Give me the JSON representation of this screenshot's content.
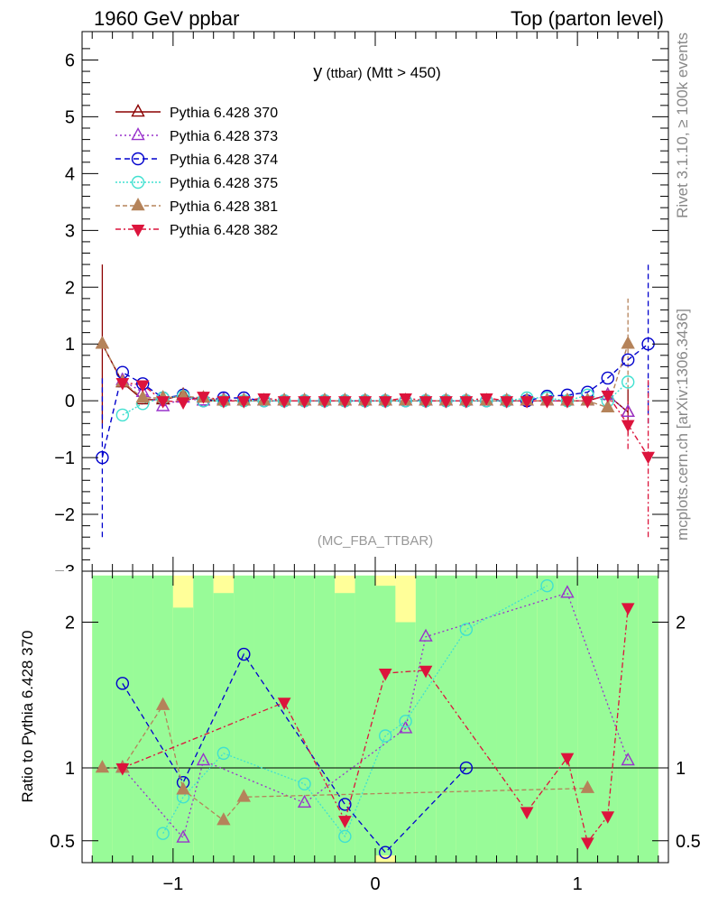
{
  "header": {
    "left": "1960 GeV ppbar",
    "right": "Top (parton level)"
  },
  "side_labels": {
    "rivet": "Rivet 3.1.10, ≥ 100k events",
    "mcplots": "mcplots.cern.ch [arXiv:1306.3436]"
  },
  "chart_data": [
    {
      "type": "line",
      "title": "y (ttbar) (Mtt > 450)",
      "title_main": "y",
      "title_small": "(ttbar)",
      "title_rest": "(Mtt > 450)",
      "analysis_tag": "(MC_FBA_TTBAR)",
      "xlabel": "",
      "ylabel": "",
      "xlim": [
        -1.45,
        1.45
      ],
      "ylim": [
        -3,
        6.5
      ],
      "yticks": [
        -2,
        -1,
        0,
        1,
        2,
        3,
        4,
        5,
        6
      ],
      "ytick_labels": [
        "−2",
        "−1",
        "0",
        "1",
        "2",
        "3",
        "4",
        "5",
        "6"
      ],
      "xticks": [
        -1,
        0,
        1
      ],
      "legend_position": "top-left",
      "x": [
        -1.35,
        -1.25,
        -1.15,
        -1.05,
        -0.95,
        -0.85,
        -0.75,
        -0.65,
        -0.55,
        -0.45,
        -0.35,
        -0.25,
        -0.15,
        -0.05,
        0.05,
        0.15,
        0.25,
        0.35,
        0.45,
        0.55,
        0.65,
        0.75,
        0.85,
        0.95,
        1.05,
        1.15,
        1.25,
        1.35
      ],
      "series": [
        {
          "name": "Pythia 6.428 370",
          "color": "#8b0000",
          "marker": "triangle-open",
          "dash": "",
          "values": [
            1.0,
            0.32,
            0.02,
            0.02,
            0.1,
            0.0,
            0.0,
            0.0,
            0.0,
            0.0,
            0.0,
            0.0,
            0.0,
            0.0,
            0.0,
            0.0,
            0.0,
            0.0,
            0.0,
            0.0,
            0.0,
            0.0,
            0.0,
            0.0,
            0.0,
            0.1,
            -0.2,
            null
          ]
        },
        {
          "name": "Pythia 6.428 373",
          "color": "#9932cc",
          "marker": "triangle-open",
          "dash": "2,3",
          "values": [
            null,
            0.36,
            0.15,
            -0.1,
            0.05,
            0.0,
            0.02,
            0.0,
            0.0,
            0.0,
            0.0,
            0.0,
            0.0,
            0.0,
            0.0,
            0.0,
            0.0,
            0.0,
            0.0,
            0.0,
            0.0,
            0.0,
            0.0,
            0.0,
            0.0,
            0.1,
            -0.2,
            null
          ]
        },
        {
          "name": "Pythia 6.428 374",
          "color": "#0000cd",
          "marker": "circle-open",
          "dash": "6,4",
          "values": [
            -1.0,
            0.5,
            0.3,
            0.05,
            0.1,
            0.0,
            0.05,
            0.05,
            0.0,
            0.0,
            0.0,
            0.0,
            0.0,
            0.0,
            0.0,
            0.0,
            0.0,
            0.0,
            0.0,
            0.0,
            0.0,
            0.0,
            0.08,
            0.1,
            0.15,
            0.4,
            0.72,
            1.0
          ]
        },
        {
          "name": "Pythia 6.428 375",
          "color": "#40e0d0",
          "marker": "circle-open",
          "dash": "2,2",
          "values": [
            null,
            -0.25,
            -0.05,
            0.05,
            0.08,
            0.0,
            0.0,
            0.0,
            0.0,
            0.0,
            0.0,
            0.0,
            0.0,
            0.0,
            0.0,
            0.0,
            0.0,
            0.0,
            0.0,
            0.0,
            0.0,
            0.05,
            0.05,
            0.0,
            0.1,
            0.0,
            0.33,
            null
          ]
        },
        {
          "name": "Pythia 6.428 381",
          "color": "#b5835a",
          "marker": "triangle-filled",
          "dash": "5,3",
          "values": [
            1.0,
            0.33,
            0.05,
            0.05,
            0.08,
            0.05,
            0.0,
            0.0,
            0.0,
            0.0,
            0.0,
            0.0,
            0.0,
            0.0,
            0.0,
            0.0,
            0.0,
            0.0,
            0.0,
            0.0,
            0.0,
            0.0,
            0.0,
            0.0,
            0.0,
            -0.12,
            1.0,
            null
          ]
        },
        {
          "name": "Pythia 6.428 382",
          "color": "#dc143c",
          "marker": "triangle-down-filled",
          "dash": "6,3,2,3",
          "values": [
            null,
            0.32,
            0.28,
            0.0,
            -0.02,
            0.08,
            0.0,
            0.0,
            0.05,
            0.0,
            0.0,
            0.0,
            0.0,
            0.0,
            0.0,
            0.05,
            0.0,
            0.0,
            0.0,
            0.05,
            0.0,
            0.0,
            0.0,
            0.0,
            0.0,
            0.1,
            -0.42,
            -0.98
          ]
        }
      ],
      "error_bars": [
        {
          "series": "Pythia 6.428 370",
          "x": -1.35,
          "low": -0.4,
          "high": 2.4
        },
        {
          "series": "Pythia 6.428 374",
          "x": -1.35,
          "low": -2.4,
          "high": 0.4
        },
        {
          "series": "Pythia 6.428 374",
          "x": 1.35,
          "low": -0.4,
          "high": 2.4
        },
        {
          "series": "Pythia 6.428 382",
          "x": 1.35,
          "low": -2.4,
          "high": 0.4
        },
        {
          "series": "Pythia 6.428 381",
          "x": 1.25,
          "low": 0.2,
          "high": 1.8
        },
        {
          "series": "Pythia 6.428 370",
          "x": 1.25,
          "low": -0.6,
          "high": 0.2
        },
        {
          "series": "Pythia 6.428 382",
          "x": 1.25,
          "low": -0.85,
          "high": 0.0
        }
      ]
    },
    {
      "type": "line",
      "ylabel": "Ratio to Pythia 6.428 370",
      "xlim": [
        -1.45,
        1.45
      ],
      "ylim": [
        0.35,
        2.35
      ],
      "yticks": [
        0.5,
        1,
        2
      ],
      "ytick_labels": [
        "0.5",
        "1",
        "2"
      ],
      "xticks": [
        -1,
        0,
        1
      ],
      "xtick_labels": [
        "−1",
        "0",
        "1"
      ],
      "band_colors": {
        "inner": "#98fb98",
        "outer": "#ffff99"
      },
      "band_lower": [
        0.35,
        0.35,
        0.35,
        0.35,
        0.35,
        0.35,
        0.35,
        0.35,
        0.35,
        0.35,
        0.35,
        0.35,
        0.35,
        0.35,
        0.4,
        0.35,
        0.35,
        0.35,
        0.35,
        0.35,
        0.35,
        0.35,
        0.35,
        0.35,
        0.35,
        0.35,
        0.35,
        0.35
      ],
      "band_upper": [
        2.32,
        2.32,
        2.32,
        2.32,
        2.1,
        2.32,
        2.2,
        2.32,
        2.32,
        2.32,
        2.32,
        2.32,
        2.2,
        2.32,
        2.25,
        2.0,
        2.32,
        2.32,
        2.32,
        2.32,
        2.32,
        2.32,
        2.32,
        2.32,
        2.32,
        2.32,
        2.32,
        2.32
      ],
      "series": [
        {
          "name": "Pythia 6.428 373",
          "values": [
            null,
            1.0,
            null,
            null,
            0.52,
            1.05,
            null,
            null,
            null,
            null,
            0.76,
            null,
            null,
            null,
            null,
            1.27,
            1.9,
            null,
            null,
            null,
            null,
            null,
            null,
            2.2,
            null,
            null,
            1.05,
            null
          ]
        },
        {
          "name": "Pythia 6.428 374",
          "values": [
            null,
            1.58,
            null,
            null,
            0.9,
            null,
            null,
            1.78,
            null,
            null,
            null,
            null,
            0.75,
            null,
            0.42,
            null,
            null,
            null,
            1.0,
            null,
            null,
            null,
            null,
            null,
            null,
            null,
            null,
            null
          ]
        },
        {
          "name": "Pythia 6.428 375",
          "values": [
            null,
            null,
            null,
            0.55,
            0.8,
            null,
            1.1,
            null,
            null,
            null,
            0.89,
            null,
            0.53,
            null,
            1.22,
            1.32,
            null,
            null,
            1.95,
            null,
            null,
            null,
            2.25,
            null,
            null,
            null,
            null,
            null
          ]
        },
        {
          "name": "Pythia 6.428 381",
          "values": [
            1.0,
            1.0,
            null,
            1.43,
            0.85,
            null,
            0.64,
            0.8,
            null,
            null,
            null,
            null,
            null,
            null,
            null,
            null,
            null,
            null,
            null,
            null,
            null,
            null,
            null,
            null,
            0.86,
            null,
            null,
            null
          ]
        },
        {
          "name": "Pythia 6.428 382",
          "values": [
            null,
            1.0,
            null,
            null,
            null,
            null,
            null,
            null,
            null,
            1.45,
            null,
            null,
            0.64,
            null,
            1.65,
            null,
            1.67,
            null,
            null,
            null,
            null,
            0.7,
            null,
            1.07,
            0.49,
            0.67,
            2.1,
            null
          ]
        }
      ]
    }
  ]
}
